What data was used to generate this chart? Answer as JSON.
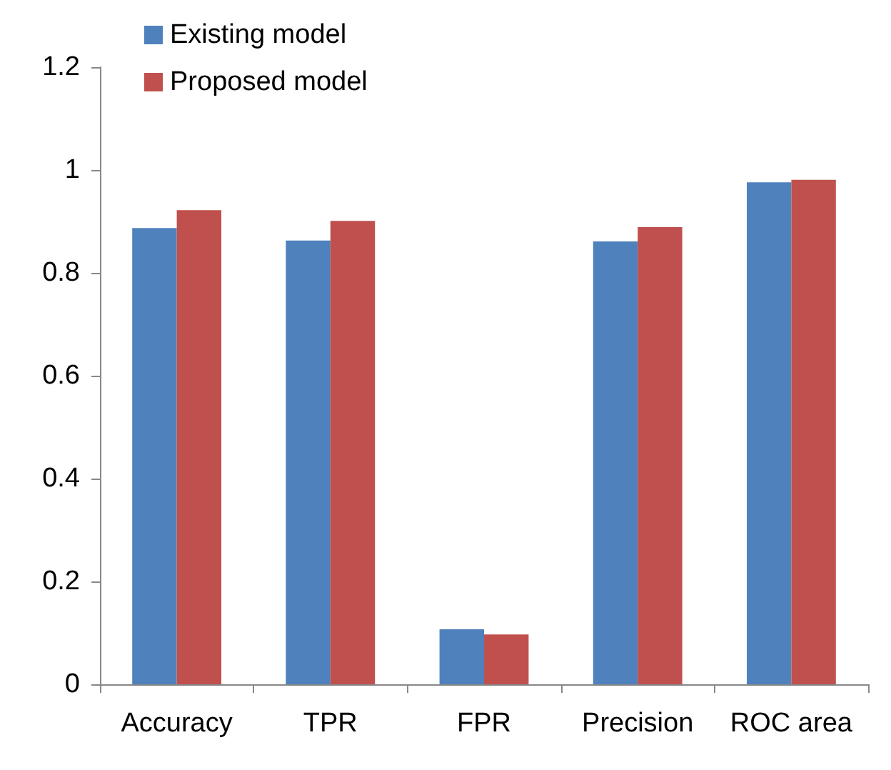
{
  "chart_data": {
    "type": "bar",
    "categories": [
      "Accuracy",
      "TPR",
      "FPR",
      "Precision",
      "ROC area"
    ],
    "series": [
      {
        "name": "Existing model",
        "color": "#4f81bd",
        "values": [
          0.887,
          0.863,
          0.107,
          0.861,
          0.976
        ]
      },
      {
        "name": "Proposed model",
        "color": "#c0504d",
        "values": [
          0.922,
          0.901,
          0.097,
          0.889,
          0.981
        ]
      }
    ],
    "ylim": [
      0,
      1.2
    ],
    "yticks": [
      0,
      0.2,
      0.4,
      0.6,
      0.8,
      1,
      1.2
    ],
    "grid": false,
    "legend": "top left"
  }
}
